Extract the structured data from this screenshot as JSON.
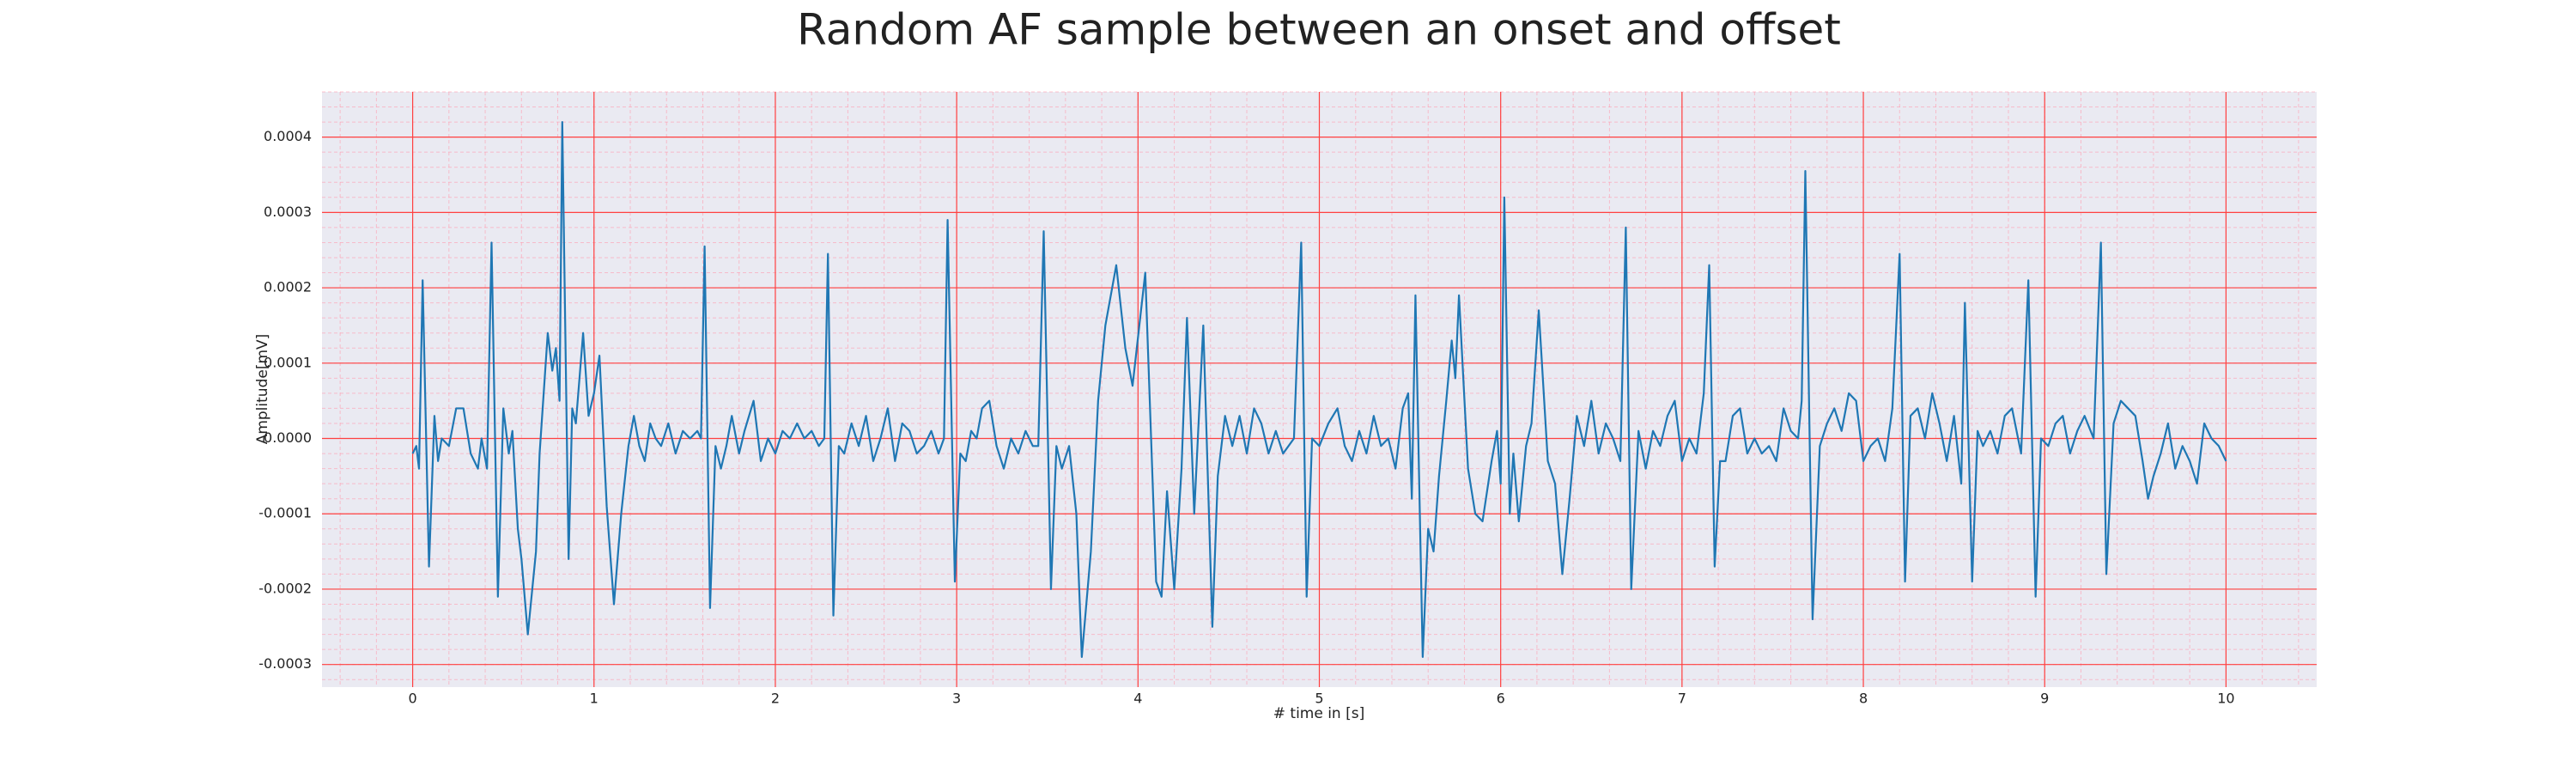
{
  "chart_data": {
    "type": "line",
    "title": "Random AF sample between an onset and offset",
    "xlabel": "# time in [s]",
    "ylabel": "Amplitude[mV]",
    "xlim": [
      -0.5,
      10.5
    ],
    "ylim": [
      -0.00033,
      0.00046
    ],
    "xticks": [
      0,
      1,
      2,
      3,
      4,
      5,
      6,
      7,
      8,
      9,
      10
    ],
    "yticks": [
      -0.0003,
      -0.0002,
      -0.0001,
      {
        "value": 0,
        "label": "0.0000"
      },
      0.0001,
      0.0002,
      0.0003,
      0.0004
    ],
    "xminorticks": [
      -0.4,
      -0.2,
      0,
      0.2,
      0.4,
      0.6,
      0.8,
      1,
      1.2,
      1.4,
      1.6,
      1.8,
      2,
      2.2,
      2.4,
      2.6,
      2.8,
      3,
      3.2,
      3.4,
      3.6,
      3.8,
      4,
      4.2,
      4.4,
      4.6,
      4.8,
      5,
      5.2,
      5.4,
      5.6,
      5.8,
      6,
      6.2,
      6.4,
      6.6,
      6.8,
      7,
      7.2,
      7.4,
      7.6,
      7.8,
      8,
      8.2,
      8.4,
      8.6,
      8.8,
      9,
      9.2,
      9.4,
      9.6,
      9.8,
      10,
      10.2,
      10.4
    ],
    "yminorticks": [
      -0.00032,
      -0.0003,
      -0.00028,
      -0.00026,
      -0.00024,
      -0.00022,
      -0.0002,
      -0.00018,
      -0.00016,
      -0.00014,
      -0.00012,
      -0.0001,
      -8e-05,
      -6e-05,
      -4e-05,
      -2e-05,
      0,
      2e-05,
      4e-05,
      6e-05,
      8e-05,
      0.0001,
      0.00012,
      0.00014,
      0.00016,
      0.00018,
      0.0002,
      0.00022,
      0.00024,
      0.00026,
      0.00028,
      0.0003,
      0.00032,
      0.00034,
      0.00036,
      0.00038,
      0.0004,
      0.00042,
      0.00044,
      0.00046
    ],
    "grid": true,
    "minor_grid": true,
    "x": [
      0,
      0.02,
      0.035,
      0.055,
      0.09,
      0.12,
      0.14,
      0.16,
      0.2,
      0.24,
      0.28,
      0.32,
      0.36,
      0.38,
      0.41,
      0.435,
      0.47,
      0.5,
      0.53,
      0.55,
      0.58,
      0.6,
      0.635,
      0.68,
      0.7,
      0.745,
      0.77,
      0.79,
      0.81,
      0.825,
      0.86,
      0.88,
      0.9,
      0.94,
      0.97,
      1,
      1.03,
      1.07,
      1.11,
      1.15,
      1.19,
      1.22,
      1.25,
      1.28,
      1.31,
      1.34,
      1.37,
      1.41,
      1.45,
      1.49,
      1.53,
      1.57,
      1.59,
      1.61,
      1.64,
      1.67,
      1.7,
      1.73,
      1.76,
      1.8,
      1.83,
      1.88,
      1.92,
      1.96,
      2,
      2.04,
      2.08,
      2.12,
      2.16,
      2.2,
      2.24,
      2.27,
      2.29,
      2.32,
      2.35,
      2.38,
      2.42,
      2.46,
      2.5,
      2.54,
      2.58,
      2.62,
      2.66,
      2.7,
      2.74,
      2.78,
      2.82,
      2.86,
      2.9,
      2.93,
      2.95,
      2.99,
      3.02,
      3.05,
      3.08,
      3.11,
      3.14,
      3.18,
      3.22,
      3.26,
      3.3,
      3.34,
      3.38,
      3.42,
      3.45,
      3.48,
      3.52,
      3.55,
      3.58,
      3.62,
      3.66,
      3.69,
      3.74,
      3.78,
      3.82,
      3.88,
      3.93,
      3.97,
      4.04,
      4.1,
      4.13,
      4.16,
      4.2,
      4.24,
      4.27,
      4.31,
      4.36,
      4.41,
      4.44,
      4.48,
      4.52,
      4.56,
      4.6,
      4.64,
      4.68,
      4.72,
      4.76,
      4.8,
      4.86,
      4.9,
      4.93,
      4.96,
      5,
      5.05,
      5.1,
      5.14,
      5.18,
      5.22,
      5.26,
      5.3,
      5.34,
      5.38,
      5.42,
      5.46,
      5.49,
      5.51,
      5.53,
      5.57,
      5.6,
      5.63,
      5.66,
      5.7,
      5.73,
      5.75,
      5.77,
      5.82,
      5.86,
      5.9,
      5.95,
      5.98,
      6,
      6.02,
      6.05,
      6.07,
      6.1,
      6.14,
      6.17,
      6.21,
      6.26,
      6.3,
      6.34,
      6.38,
      6.42,
      6.46,
      6.5,
      6.54,
      6.58,
      6.62,
      6.66,
      6.69,
      6.72,
      6.76,
      6.8,
      6.84,
      6.88,
      6.92,
      6.96,
      7,
      7.04,
      7.08,
      7.12,
      7.15,
      7.18,
      7.21,
      7.24,
      7.28,
      7.32,
      7.36,
      7.4,
      7.44,
      7.48,
      7.52,
      7.56,
      7.6,
      7.64,
      7.66,
      7.68,
      7.72,
      7.76,
      7.8,
      7.84,
      7.88,
      7.92,
      7.96,
      8,
      8.04,
      8.08,
      8.12,
      8.16,
      8.2,
      8.23,
      8.26,
      8.3,
      8.34,
      8.38,
      8.42,
      8.46,
      8.5,
      8.54,
      8.56,
      8.6,
      8.63,
      8.66,
      8.7,
      8.74,
      8.78,
      8.82,
      8.87,
      8.91,
      8.95,
      8.98,
      9.02,
      9.06,
      9.1,
      9.14,
      9.18,
      9.22,
      9.27,
      9.31,
      9.34,
      9.38,
      9.42,
      9.46,
      9.5,
      9.54,
      9.57,
      9.6,
      9.64,
      9.68,
      9.72,
      9.76,
      9.8,
      9.84,
      9.88,
      9.92,
      9.96,
      10
    ],
    "series": [
      {
        "color": "#1f77b4",
        "values": [
          -2e-05,
          -1e-05,
          -4e-05,
          0.00021,
          -0.00017,
          3e-05,
          -3e-05,
          0,
          -1e-05,
          4e-05,
          4e-05,
          -2e-05,
          -4e-05,
          0,
          -4e-05,
          0.00026,
          -0.00021,
          4e-05,
          -2e-05,
          1e-05,
          -0.00012,
          -0.00016,
          -0.00026,
          -0.00015,
          -2e-05,
          0.00014,
          9e-05,
          0.00012,
          5e-05,
          0.00042,
          -0.00016,
          4e-05,
          2e-05,
          0.00014,
          3e-05,
          6e-05,
          0.00011,
          -9e-05,
          -0.00022,
          -0.0001,
          -1e-05,
          3e-05,
          -1e-05,
          -3e-05,
          2e-05,
          0,
          -1e-05,
          2e-05,
          -2e-05,
          1e-05,
          0,
          1e-05,
          0,
          0.000255,
          -0.000225,
          -1e-05,
          -4e-05,
          -1e-05,
          3e-05,
          -2e-05,
          1e-05,
          5e-05,
          -3e-05,
          0,
          -2e-05,
          1e-05,
          0,
          2e-05,
          0,
          1e-05,
          -1e-05,
          0,
          0.000245,
          -0.000235,
          -1e-05,
          -2e-05,
          2e-05,
          -1e-05,
          3e-05,
          -3e-05,
          0,
          4e-05,
          -3e-05,
          2e-05,
          1e-05,
          -2e-05,
          -1e-05,
          1e-05,
          -2e-05,
          0,
          0.00029,
          -0.00019,
          -2e-05,
          -3e-05,
          1e-05,
          0,
          4e-05,
          5e-05,
          -1e-05,
          -4e-05,
          0,
          -2e-05,
          1e-05,
          -1e-05,
          -1e-05,
          0.000275,
          -0.0002,
          -1e-05,
          -4e-05,
          -1e-05,
          -0.0001,
          -0.00029,
          -0.00015,
          5e-05,
          0.00015,
          0.00023,
          0.00012,
          7e-05,
          0.00022,
          -0.00019,
          -0.00021,
          -7e-05,
          -0.0002,
          -4e-05,
          0.00016,
          -0.0001,
          0.00015,
          -0.00025,
          -5e-05,
          3e-05,
          -1e-05,
          3e-05,
          -2e-05,
          4e-05,
          2e-05,
          -2e-05,
          1e-05,
          -2e-05,
          0,
          0.00026,
          -0.00021,
          0,
          -1e-05,
          2e-05,
          4e-05,
          -1e-05,
          -3e-05,
          1e-05,
          -2e-05,
          3e-05,
          -1e-05,
          0,
          -4e-05,
          4e-05,
          6e-05,
          -8e-05,
          0.00019,
          -0.00029,
          -0.00012,
          -0.00015,
          -5e-05,
          5e-05,
          0.00013,
          8e-05,
          0.00019,
          -4e-05,
          -0.0001,
          -0.00011,
          -3e-05,
          1e-05,
          -6e-05,
          0.00032,
          -0.0001,
          -2e-05,
          -0.00011,
          -1e-05,
          2e-05,
          0.00017,
          -3e-05,
          -6e-05,
          -0.00018,
          -8e-05,
          3e-05,
          -1e-05,
          5e-05,
          -2e-05,
          2e-05,
          0,
          -3e-05,
          0.00028,
          -0.0002,
          1e-05,
          -4e-05,
          1e-05,
          -1e-05,
          3e-05,
          5e-05,
          -3e-05,
          0,
          -2e-05,
          6e-05,
          0.00023,
          -0.00017,
          -3e-05,
          -3e-05,
          3e-05,
          4e-05,
          -2e-05,
          0,
          -2e-05,
          -1e-05,
          -3e-05,
          4e-05,
          1e-05,
          0,
          5e-05,
          0.000355,
          -0.00024,
          -1e-05,
          2e-05,
          4e-05,
          1e-05,
          6e-05,
          5e-05,
          -3e-05,
          -1e-05,
          0,
          -3e-05,
          4e-05,
          0.000245,
          -0.00019,
          3e-05,
          4e-05,
          0,
          6e-05,
          2e-05,
          -3e-05,
          3e-05,
          -6e-05,
          0.00018,
          -0.00019,
          1e-05,
          -1e-05,
          1e-05,
          -2e-05,
          3e-05,
          4e-05,
          -2e-05,
          0.00021,
          -0.00021,
          0,
          -1e-05,
          2e-05,
          3e-05,
          -2e-05,
          1e-05,
          3e-05,
          0,
          0.00026,
          -0.00018,
          2e-05,
          5e-05,
          4e-05,
          3e-05,
          -3e-05,
          -8e-05,
          -5e-05,
          -2e-05,
          2e-05,
          -4e-05,
          -1e-05,
          -3e-05,
          -6e-05,
          2e-05,
          0,
          -1e-05,
          -3e-05
        ]
      }
    ]
  }
}
